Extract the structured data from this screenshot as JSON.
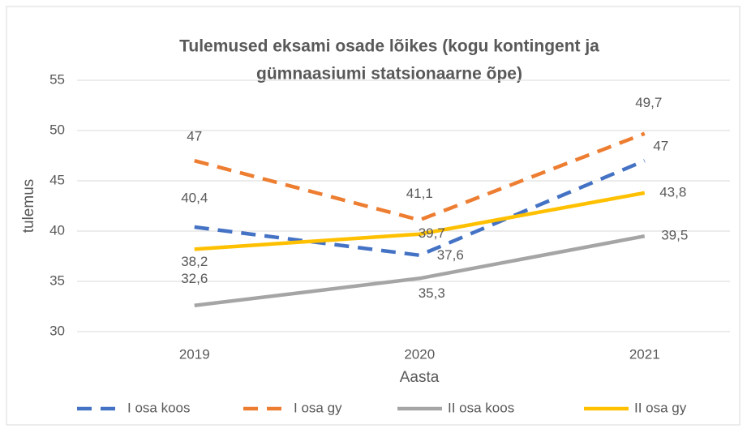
{
  "chart_data": {
    "type": "line",
    "title": [
      "Tulemused eksami osade lõikes (kogu kontingent ja",
      "gümnaasiumi statsionaarne õpe)"
    ],
    "x_label": "Aasta",
    "y_label": "tulemus",
    "categories": [
      "2019",
      "2020",
      "2021"
    ],
    "ylim": [
      30,
      55
    ],
    "yticks": [
      30,
      35,
      40,
      45,
      50,
      55
    ],
    "grid": true,
    "legend": "bottom",
    "series": [
      {
        "name": "I osa koos",
        "color": "#4472c4",
        "dashed": true,
        "values": [
          40.4,
          37.6,
          47
        ],
        "value_labels": [
          "40,4",
          "37,6",
          "47"
        ]
      },
      {
        "name": "I osa gy",
        "color": "#ed7d31",
        "dashed": true,
        "values": [
          47,
          41.1,
          49.7
        ],
        "value_labels": [
          "47",
          "41,1",
          "49,7"
        ]
      },
      {
        "name": "II osa koos",
        "color": "#a5a5a5",
        "dashed": false,
        "values": [
          32.6,
          35.3,
          39.5
        ],
        "value_labels": [
          "32,6",
          "35,3",
          "39,5"
        ]
      },
      {
        "name": "II osa gy",
        "color": "#ffc000",
        "dashed": false,
        "values": [
          38.2,
          39.7,
          43.8
        ],
        "value_labels": [
          "38,2",
          "39,7",
          "43,8"
        ]
      }
    ]
  }
}
